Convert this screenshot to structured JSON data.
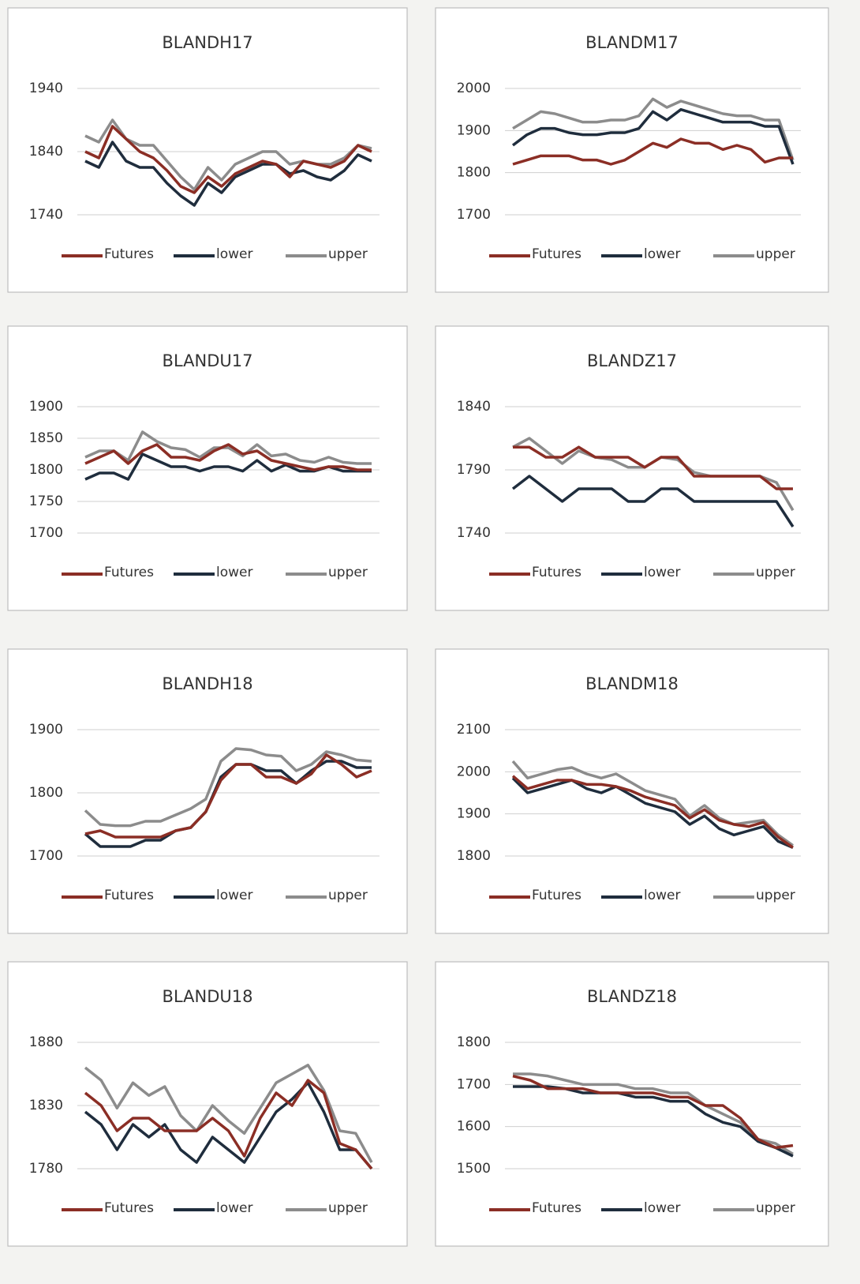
{
  "chart_data": [
    {
      "type": "line",
      "title": "BLANDH17",
      "ylim": [
        1740,
        1940
      ],
      "yticks": [
        1740,
        1840,
        1940
      ],
      "grid": true,
      "legend": "bottom",
      "series": [
        {
          "name": "Futures",
          "color": "#8b2e25",
          "values": [
            1840,
            1830,
            1880,
            1860,
            1840,
            1830,
            1810,
            1785,
            1775,
            1800,
            1785,
            1805,
            1815,
            1825,
            1820,
            1800,
            1825,
            1820,
            1815,
            1825,
            1850,
            1840
          ]
        },
        {
          "name": "lower",
          "color": "#1f2d3d",
          "values": [
            1825,
            1815,
            1855,
            1825,
            1815,
            1815,
            1790,
            1770,
            1755,
            1790,
            1775,
            1800,
            1810,
            1820,
            1820,
            1805,
            1810,
            1800,
            1795,
            1810,
            1835,
            1825
          ]
        },
        {
          "name": "upper",
          "color": "#8c8c8c",
          "values": [
            1865,
            1855,
            1890,
            1860,
            1850,
            1850,
            1825,
            1800,
            1780,
            1815,
            1795,
            1820,
            1830,
            1840,
            1840,
            1820,
            1825,
            1820,
            1820,
            1830,
            1850,
            1845
          ]
        }
      ]
    },
    {
      "type": "line",
      "title": "BLANDM17",
      "ylim": [
        1700,
        2000
      ],
      "yticks": [
        1700,
        1800,
        1900,
        2000
      ],
      "grid": true,
      "legend": "bottom",
      "series": [
        {
          "name": "Futures",
          "color": "#8b2e25",
          "values": [
            1820,
            1830,
            1840,
            1840,
            1840,
            1830,
            1830,
            1820,
            1830,
            1850,
            1870,
            1860,
            1880,
            1870,
            1870,
            1855,
            1865,
            1855,
            1825,
            1835,
            1835
          ]
        },
        {
          "name": "lower",
          "color": "#1f2d3d",
          "values": [
            1865,
            1890,
            1905,
            1905,
            1895,
            1890,
            1890,
            1895,
            1895,
            1905,
            1945,
            1925,
            1950,
            1940,
            1930,
            1920,
            1920,
            1920,
            1910,
            1910,
            1820
          ]
        },
        {
          "name": "upper",
          "color": "#8c8c8c",
          "values": [
            1905,
            1925,
            1945,
            1940,
            1930,
            1920,
            1920,
            1925,
            1925,
            1935,
            1975,
            1955,
            1970,
            1960,
            1950,
            1940,
            1935,
            1935,
            1925,
            1925,
            1830
          ]
        }
      ]
    },
    {
      "type": "line",
      "title": "BLANDU17",
      "ylim": [
        1700,
        1900
      ],
      "yticks": [
        1700,
        1750,
        1800,
        1850,
        1900
      ],
      "grid": true,
      "legend": "bottom",
      "series": [
        {
          "name": "Futures",
          "color": "#8b2e25",
          "values": [
            1810,
            1820,
            1830,
            1810,
            1830,
            1840,
            1820,
            1820,
            1815,
            1830,
            1840,
            1825,
            1830,
            1815,
            1810,
            1805,
            1800,
            1805,
            1805,
            1800,
            1800
          ]
        },
        {
          "name": "lower",
          "color": "#1f2d3d",
          "values": [
            1785,
            1795,
            1795,
            1785,
            1825,
            1815,
            1805,
            1805,
            1798,
            1805,
            1805,
            1798,
            1815,
            1798,
            1808,
            1798,
            1798,
            1805,
            1798,
            1798,
            1798
          ]
        },
        {
          "name": "upper",
          "color": "#8c8c8c",
          "values": [
            1820,
            1830,
            1830,
            1815,
            1860,
            1845,
            1835,
            1832,
            1820,
            1835,
            1835,
            1822,
            1840,
            1822,
            1825,
            1815,
            1812,
            1820,
            1812,
            1810,
            1810
          ]
        }
      ]
    },
    {
      "type": "line",
      "title": "BLANDZ17",
      "ylim": [
        1740,
        1840
      ],
      "yticks": [
        1740,
        1790,
        1840
      ],
      "grid": true,
      "legend": "bottom",
      "series": [
        {
          "name": "Futures",
          "color": "#8b2e25",
          "values": [
            1808,
            1808,
            1800,
            1800,
            1808,
            1800,
            1800,
            1800,
            1792,
            1800,
            1800,
            1785,
            1785,
            1785,
            1785,
            1785,
            1775,
            1775
          ]
        },
        {
          "name": "lower",
          "color": "#1f2d3d",
          "values": [
            1775,
            1785,
            1775,
            1765,
            1775,
            1775,
            1775,
            1765,
            1765,
            1775,
            1775,
            1765,
            1765,
            1765,
            1765,
            1765,
            1765,
            1745
          ]
        },
        {
          "name": "upper",
          "color": "#8c8c8c",
          "values": [
            1808,
            1815,
            1805,
            1795,
            1805,
            1800,
            1798,
            1792,
            1792,
            1800,
            1798,
            1788,
            1785,
            1785,
            1785,
            1785,
            1780,
            1758
          ]
        }
      ]
    },
    {
      "type": "line",
      "title": "BLANDH18",
      "ylim": [
        1700,
        1900
      ],
      "yticks": [
        1700,
        1800,
        1900
      ],
      "grid": true,
      "legend": "bottom",
      "series": [
        {
          "name": "Futures",
          "color": "#8b2e25",
          "values": [
            1735,
            1740,
            1730,
            1730,
            1730,
            1730,
            1740,
            1745,
            1770,
            1820,
            1845,
            1845,
            1825,
            1825,
            1815,
            1830,
            1860,
            1845,
            1825,
            1835
          ]
        },
        {
          "name": "lower",
          "color": "#1f2d3d",
          "values": [
            1735,
            1715,
            1715,
            1715,
            1725,
            1725,
            1740,
            1745,
            1770,
            1825,
            1845,
            1845,
            1835,
            1835,
            1815,
            1835,
            1850,
            1850,
            1840,
            1840
          ]
        },
        {
          "name": "upper",
          "color": "#8c8c8c",
          "values": [
            1772,
            1750,
            1748,
            1748,
            1755,
            1755,
            1765,
            1775,
            1790,
            1850,
            1870,
            1868,
            1860,
            1858,
            1835,
            1845,
            1865,
            1860,
            1852,
            1850
          ]
        }
      ]
    },
    {
      "type": "line",
      "title": "BLANDM18",
      "ylim": [
        1800,
        2100
      ],
      "yticks": [
        1800,
        1900,
        2000,
        2100
      ],
      "grid": true,
      "legend": "bottom",
      "series": [
        {
          "name": "Futures",
          "color": "#8b2e25",
          "values": [
            1990,
            1960,
            1970,
            1980,
            1980,
            1970,
            1970,
            1965,
            1955,
            1940,
            1930,
            1920,
            1890,
            1910,
            1885,
            1875,
            1870,
            1880,
            1845,
            1820
          ]
        },
        {
          "name": "lower",
          "color": "#1f2d3d",
          "values": [
            1985,
            1950,
            1960,
            1970,
            1980,
            1960,
            1950,
            1965,
            1945,
            1925,
            1915,
            1905,
            1875,
            1895,
            1865,
            1850,
            1860,
            1870,
            1835,
            1820
          ]
        },
        {
          "name": "upper",
          "color": "#8c8c8c",
          "values": [
            2025,
            1985,
            1995,
            2005,
            2010,
            1995,
            1985,
            1995,
            1975,
            1955,
            1945,
            1935,
            1895,
            1920,
            1890,
            1875,
            1880,
            1885,
            1850,
            1825
          ]
        }
      ]
    },
    {
      "type": "line",
      "title": "BLANDU18",
      "ylim": [
        1780,
        1880
      ],
      "yticks": [
        1780,
        1830,
        1880
      ],
      "grid": true,
      "legend": "bottom",
      "series": [
        {
          "name": "Futures",
          "color": "#8b2e25",
          "values": [
            1840,
            1830,
            1810,
            1820,
            1820,
            1810,
            1810,
            1810,
            1820,
            1810,
            1790,
            1820,
            1840,
            1830,
            1850,
            1840,
            1800,
            1795,
            1780
          ]
        },
        {
          "name": "lower",
          "color": "#1f2d3d",
          "values": [
            1825,
            1815,
            1795,
            1815,
            1805,
            1815,
            1795,
            1785,
            1805,
            1795,
            1785,
            1805,
            1825,
            1835,
            1848,
            1825,
            1795,
            1795,
            1780
          ]
        },
        {
          "name": "upper",
          "color": "#8c8c8c",
          "values": [
            1860,
            1850,
            1828,
            1848,
            1838,
            1845,
            1822,
            1810,
            1830,
            1818,
            1808,
            1828,
            1848,
            1855,
            1862,
            1842,
            1810,
            1808,
            1785
          ]
        }
      ]
    },
    {
      "type": "line",
      "title": "BLANDZ18",
      "ylim": [
        1500,
        1800
      ],
      "yticks": [
        1500,
        1600,
        1700,
        1800
      ],
      "grid": true,
      "legend": "bottom",
      "series": [
        {
          "name": "Futures",
          "color": "#8b2e25",
          "values": [
            1720,
            1710,
            1690,
            1690,
            1690,
            1680,
            1680,
            1680,
            1680,
            1670,
            1670,
            1650,
            1650,
            1620,
            1570,
            1550,
            1555
          ]
        },
        {
          "name": "lower",
          "color": "#1f2d3d",
          "values": [
            1695,
            1695,
            1695,
            1690,
            1680,
            1680,
            1680,
            1670,
            1670,
            1660,
            1660,
            1630,
            1610,
            1600,
            1565,
            1550,
            1530
          ]
        },
        {
          "name": "upper",
          "color": "#8c8c8c",
          "values": [
            1725,
            1725,
            1720,
            1710,
            1700,
            1700,
            1700,
            1690,
            1690,
            1680,
            1680,
            1650,
            1630,
            1610,
            1570,
            1560,
            1535
          ]
        }
      ]
    }
  ]
}
